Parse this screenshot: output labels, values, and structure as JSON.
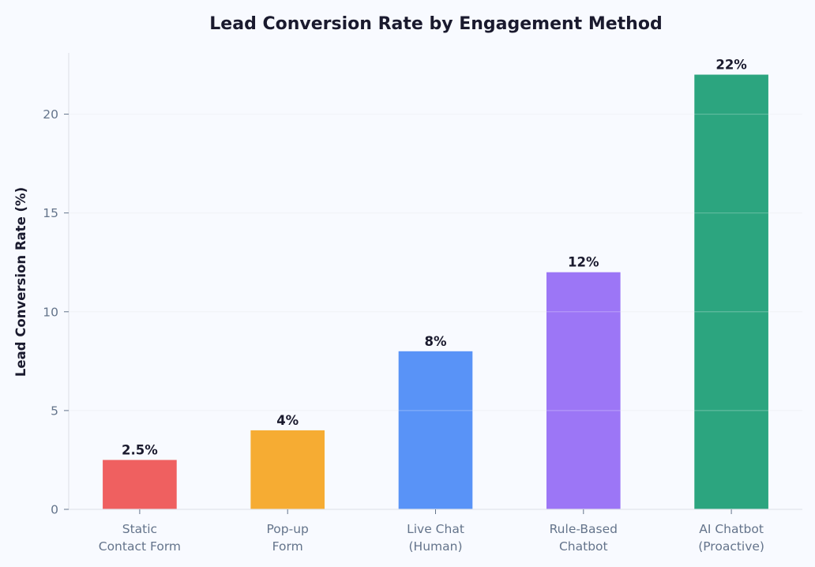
{
  "chart_data": {
    "type": "bar",
    "title": "Lead Conversion Rate by Engagement Method",
    "xlabel": "",
    "ylabel": "Lead Conversion Rate (%)",
    "categories": [
      [
        "Static",
        "Contact Form"
      ],
      [
        "Pop-up",
        "Form"
      ],
      [
        "Live Chat",
        "(Human)"
      ],
      [
        "Rule-Based",
        "Chatbot"
      ],
      [
        "AI Chatbot",
        "(Proactive)"
      ]
    ],
    "values": [
      2.5,
      4,
      8,
      12,
      22
    ],
    "value_labels": [
      "2.5%",
      "4%",
      "8%",
      "12%",
      "22%"
    ],
    "colors": [
      "#ef6060",
      "#f6ac33",
      "#5993f7",
      "#9c76f6",
      "#2ca57f"
    ],
    "yticks": [
      0,
      5,
      10,
      15,
      20
    ],
    "ylim": [
      0,
      23.1
    ],
    "grid": true,
    "legend": "none"
  }
}
